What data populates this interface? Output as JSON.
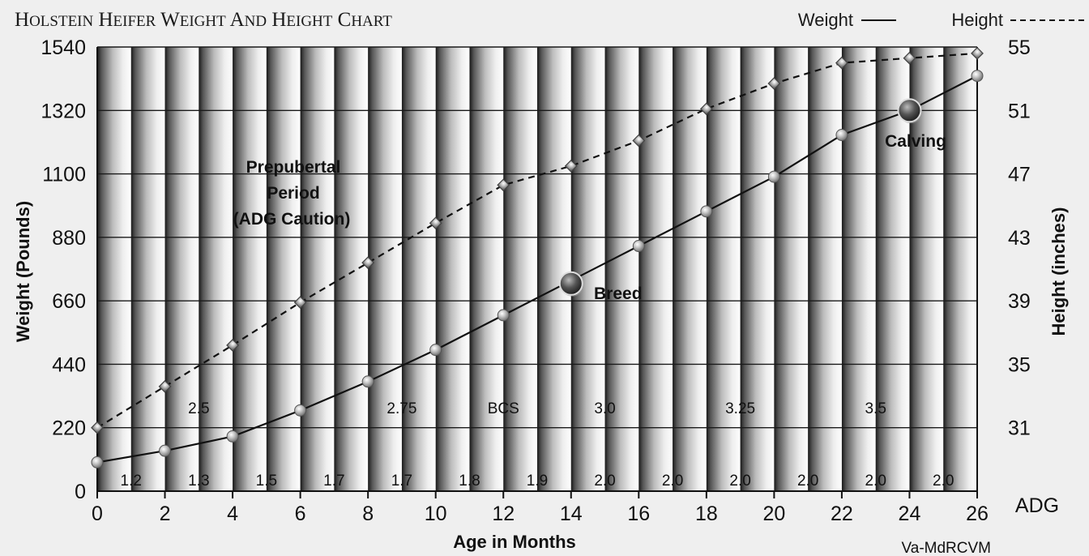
{
  "chart_data": {
    "type": "line",
    "title": "Holstein Heifer Weight and Height Chart",
    "xlabel": "Age in Months",
    "ylabel_left": "Weight (Pounds)",
    "ylabel_right": "Height (inches)",
    "x": [
      0,
      2,
      4,
      6,
      8,
      10,
      12,
      14,
      16,
      18,
      20,
      22,
      24,
      26
    ],
    "xlim": [
      0,
      26
    ],
    "ylim_left": [
      0,
      1540
    ],
    "ylim_right": [
      27,
      55
    ],
    "yticks_left": [
      0,
      220,
      440,
      660,
      880,
      1100,
      1320,
      1540
    ],
    "yticks_right": [
      31,
      35,
      39,
      43,
      47,
      51,
      55
    ],
    "series": [
      {
        "name": "Weight",
        "axis": "left",
        "style": "solid",
        "values": [
          100,
          140,
          190,
          280,
          380,
          490,
          610,
          730,
          850,
          970,
          1090,
          1235,
          1320,
          1440
        ]
      },
      {
        "name": "Height",
        "axis": "right",
        "style": "dashed",
        "values": [
          31,
          33.6,
          36.2,
          38.9,
          41.4,
          43.9,
          46.3,
          47.5,
          49.1,
          51.1,
          52.7,
          54.0,
          54.3,
          54.6
        ]
      }
    ],
    "legend_position": "top-right",
    "adg_label": "ADG",
    "adg_values": [
      {
        "x": 1,
        "label": "1.2"
      },
      {
        "x": 3,
        "label": "1.3"
      },
      {
        "x": 5,
        "label": "1.5"
      },
      {
        "x": 7,
        "label": "1.7"
      },
      {
        "x": 9,
        "label": "1.7"
      },
      {
        "x": 11,
        "label": "1.8"
      },
      {
        "x": 13,
        "label": "1.9"
      },
      {
        "x": 15,
        "label": "2.0"
      },
      {
        "x": 17,
        "label": "2.0"
      },
      {
        "x": 19,
        "label": "2.0"
      },
      {
        "x": 21,
        "label": "2.0"
      },
      {
        "x": 23,
        "label": "2.0"
      },
      {
        "x": 25,
        "label": "2.0"
      }
    ],
    "bcs_values": [
      {
        "x": 3,
        "label": "2.5"
      },
      {
        "x": 9,
        "label": "2.75"
      },
      {
        "x": 12,
        "label": "BCS"
      },
      {
        "x": 15,
        "label": "3.0"
      },
      {
        "x": 19,
        "label": "3.25"
      },
      {
        "x": 23,
        "label": "3.5"
      }
    ],
    "annotations": [
      {
        "lines": [
          "Prepubertal",
          "Period",
          "(ADG Caution)"
        ]
      },
      {
        "text": "Breed",
        "x": 14,
        "weight": 720
      },
      {
        "text": "Calving",
        "x": 24,
        "weight": 1320
      }
    ],
    "credit": "Va-MdRCVM",
    "grid": true
  }
}
